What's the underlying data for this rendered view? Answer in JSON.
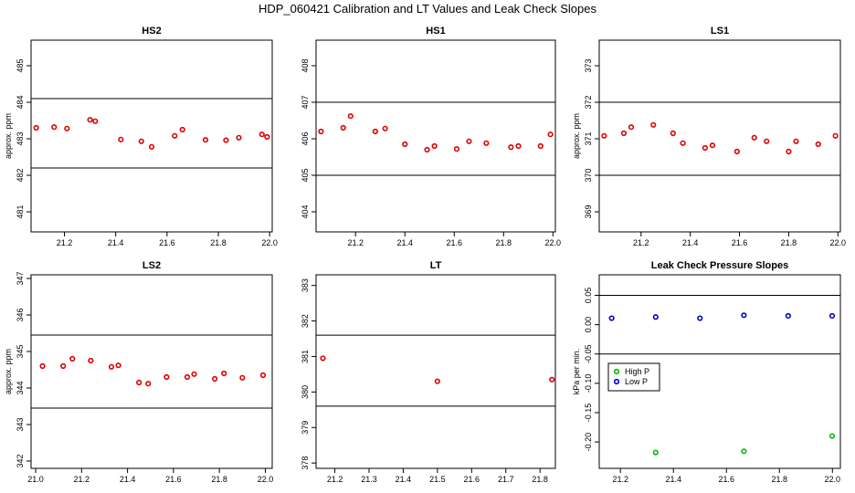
{
  "figure": {
    "title": "HDP_060421  Calibration and LT Values and Leak Check Slopes"
  },
  "chart_data": [
    {
      "id": "hs2",
      "type": "scatter",
      "title": "HS2",
      "xlabel": "",
      "ylabel": "approx. ppm",
      "xlim": [
        21.07,
        22.01
      ],
      "ylim": [
        480.45,
        485.7
      ],
      "xticks": [
        21.2,
        21.4,
        21.6,
        21.8,
        22.0
      ],
      "xtick_labels": [
        "21.2",
        "21.4",
        "21.6",
        "21.8",
        "22.0"
      ],
      "yticks": [
        481,
        482,
        483,
        484,
        485
      ],
      "ytick_labels": [
        "481",
        "482",
        "483",
        "484",
        "485"
      ],
      "hlines": [
        484.1,
        482.2
      ],
      "marker_color": "#dd0000",
      "x": [
        21.09,
        21.16,
        21.21,
        21.3,
        21.32,
        21.42,
        21.5,
        21.54,
        21.63,
        21.66,
        21.75,
        21.83,
        21.88,
        21.97,
        21.99
      ],
      "y": [
        483.3,
        483.32,
        483.28,
        483.52,
        483.48,
        482.98,
        482.93,
        482.78,
        483.08,
        483.25,
        482.97,
        482.96,
        483.03,
        483.12,
        483.05
      ]
    },
    {
      "id": "hs1",
      "type": "scatter",
      "title": "HS1",
      "xlabel": "",
      "ylabel": "",
      "xlim": [
        21.04,
        22.01
      ],
      "ylim": [
        403.45,
        408.7
      ],
      "xticks": [
        21.2,
        21.4,
        21.6,
        21.8,
        22.0
      ],
      "xtick_labels": [
        "21.2",
        "21.4",
        "21.6",
        "21.8",
        "22.0"
      ],
      "yticks": [
        404,
        405,
        406,
        407,
        408
      ],
      "ytick_labels": [
        "404",
        "405",
        "406",
        "407",
        "408"
      ],
      "hlines": [
        407.0,
        405.0
      ],
      "marker_color": "#dd0000",
      "x": [
        21.06,
        21.15,
        21.18,
        21.28,
        21.32,
        21.4,
        21.49,
        21.52,
        21.61,
        21.66,
        21.73,
        21.83,
        21.86,
        21.95,
        21.99
      ],
      "y": [
        406.2,
        406.3,
        406.62,
        406.2,
        406.28,
        405.85,
        405.7,
        405.8,
        405.72,
        405.93,
        405.88,
        405.77,
        405.8,
        405.8,
        406.12
      ]
    },
    {
      "id": "ls1",
      "type": "scatter",
      "title": "LS1",
      "xlabel": "",
      "ylabel": "approx. ppm",
      "xlim": [
        21.03,
        22.01
      ],
      "ylim": [
        368.45,
        373.7
      ],
      "xticks": [
        21.2,
        21.4,
        21.6,
        21.8,
        22.0
      ],
      "xtick_labels": [
        "21.2",
        "21.4",
        "21.6",
        "21.8",
        "22.0"
      ],
      "yticks": [
        369,
        370,
        371,
        372,
        373
      ],
      "ytick_labels": [
        "369",
        "370",
        "371",
        "372",
        "373"
      ],
      "hlines": [
        372.0,
        370.0
      ],
      "marker_color": "#dd0000",
      "x": [
        21.05,
        21.13,
        21.16,
        21.25,
        21.33,
        21.37,
        21.46,
        21.49,
        21.59,
        21.66,
        21.71,
        21.8,
        21.83,
        21.92,
        21.99
      ],
      "y": [
        371.08,
        371.15,
        371.32,
        371.38,
        371.15,
        370.88,
        370.75,
        370.82,
        370.65,
        371.03,
        370.93,
        370.65,
        370.93,
        370.85,
        371.08
      ]
    },
    {
      "id": "ls2",
      "type": "scatter",
      "title": "LS2",
      "xlabel": "",
      "ylabel": "approx. ppm",
      "xlim": [
        20.98,
        22.03
      ],
      "ylim": [
        341.8,
        347.1
      ],
      "xticks": [
        21.0,
        21.2,
        21.4,
        21.6,
        21.8,
        22.0
      ],
      "xtick_labels": [
        "21.0",
        "21.2",
        "21.4",
        "21.6",
        "21.8",
        "22.0"
      ],
      "yticks": [
        342,
        343,
        344,
        345,
        346,
        347
      ],
      "ytick_labels": [
        "342",
        "343",
        "344",
        "345",
        "346",
        "347"
      ],
      "hlines": [
        345.45,
        343.45
      ],
      "marker_color": "#dd0000",
      "x": [
        21.03,
        21.12,
        21.16,
        21.24,
        21.33,
        21.36,
        21.45,
        21.49,
        21.57,
        21.66,
        21.69,
        21.78,
        21.82,
        21.9,
        21.99
      ],
      "y": [
        344.6,
        344.6,
        344.8,
        344.75,
        344.58,
        344.62,
        344.15,
        344.12,
        344.3,
        344.3,
        344.38,
        344.25,
        344.4,
        344.28,
        344.35
      ]
    },
    {
      "id": "lt",
      "type": "scatter",
      "title": "LT",
      "xlabel": "",
      "ylabel": "",
      "xlim": [
        21.145,
        21.845
      ],
      "ylim": [
        377.85,
        383.3
      ],
      "xticks": [
        21.2,
        21.3,
        21.4,
        21.5,
        21.6,
        21.7,
        21.8
      ],
      "xtick_labels": [
        "21.2",
        "21.3",
        "21.4",
        "21.5",
        "21.6",
        "21.7",
        "21.8"
      ],
      "yticks": [
        378,
        379,
        380,
        381,
        382,
        383
      ],
      "ytick_labels": [
        "378",
        "379",
        "380",
        "381",
        "382",
        "383"
      ],
      "hlines": [
        381.6,
        379.6
      ],
      "marker_color": "#dd0000",
      "x": [
        21.165,
        21.5,
        21.835
      ],
      "y": [
        380.95,
        380.3,
        380.35
      ]
    },
    {
      "id": "leak",
      "type": "scatter",
      "title": "Leak Check Pressure Slopes",
      "xlabel": "",
      "ylabel": "kPa per min.",
      "xlim": [
        21.12,
        22.03
      ],
      "ylim": [
        -0.245,
        0.085
      ],
      "xticks": [
        21.2,
        21.4,
        21.6,
        21.8,
        22.0
      ],
      "xtick_labels": [
        "21.2",
        "21.4",
        "21.6",
        "21.8",
        "22.0"
      ],
      "yticks": [
        -0.2,
        -0.15,
        -0.1,
        -0.05,
        0.0,
        0.05
      ],
      "ytick_labels": [
        "-0.20",
        "-0.15",
        "-0.10",
        "-0.05",
        "0.00",
        "0.05"
      ],
      "hlines": [
        0.05,
        -0.05
      ],
      "legend": {
        "position": "left",
        "entries": [
          {
            "name": "High P",
            "color": "#00bb00"
          },
          {
            "name": "Low P",
            "color": "#0000cc"
          }
        ]
      },
      "series": [
        {
          "name": "High P",
          "color": "#00bb00",
          "x": [
            21.333,
            21.666,
            21.999
          ],
          "y": [
            -0.218,
            -0.216,
            -0.19
          ]
        },
        {
          "name": "Low P",
          "color": "#0000cc",
          "x": [
            21.167,
            21.333,
            21.5,
            21.666,
            21.833,
            21.999
          ],
          "y": [
            0.011,
            0.013,
            0.011,
            0.016,
            0.015,
            0.015
          ]
        }
      ]
    }
  ]
}
